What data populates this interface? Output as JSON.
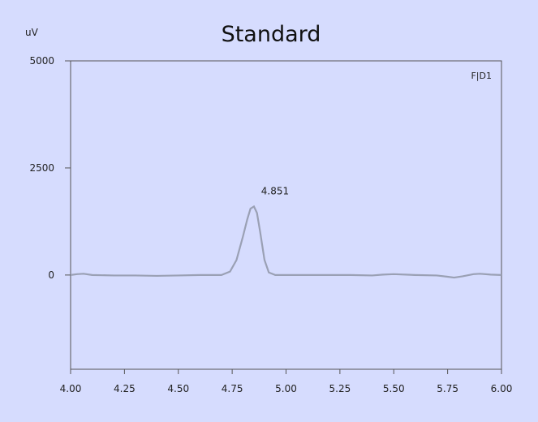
{
  "chart_data": {
    "type": "line",
    "title": "Standard",
    "y_unit": "uV",
    "trace_label": "F|D1",
    "xlim": [
      4.0,
      6.0
    ],
    "ylim": [
      -2200,
      5000
    ],
    "x_ticks": [
      "4.00",
      "4.25",
      "4.50",
      "4.75",
      "5.00",
      "5.25",
      "5.50",
      "5.75",
      "6.00"
    ],
    "x_tick_values": [
      4.0,
      4.25,
      4.5,
      4.75,
      5.0,
      5.25,
      5.5,
      5.75,
      6.0
    ],
    "y_ticks": [
      "5000",
      "2500",
      "0"
    ],
    "y_tick_values": [
      5000,
      2500,
      0
    ],
    "peak_label": {
      "text": "4.851",
      "x": 4.851,
      "y": 1600
    },
    "series": [
      {
        "x": [
          4.0,
          4.03,
          4.06,
          4.1,
          4.2,
          4.3,
          4.4,
          4.5,
          4.6,
          4.7,
          4.74,
          4.77,
          4.8,
          4.82,
          4.835,
          4.851,
          4.865,
          4.88,
          4.9,
          4.92,
          4.95,
          5.0,
          5.1,
          5.2,
          5.3,
          5.4,
          5.45,
          5.5,
          5.6,
          5.7,
          5.75,
          5.78,
          5.82,
          5.87,
          5.9,
          5.95,
          6.0
        ],
        "y": [
          0,
          20,
          30,
          0,
          -10,
          -10,
          -20,
          -10,
          0,
          0,
          80,
          350,
          900,
          1300,
          1550,
          1600,
          1450,
          1000,
          350,
          60,
          0,
          0,
          0,
          0,
          0,
          -10,
          10,
          20,
          0,
          -10,
          -40,
          -60,
          -30,
          20,
          30,
          10,
          0
        ]
      }
    ],
    "colors": {
      "background": "#d6dcfe",
      "axis": "#555555",
      "trace": "#9aa0b4"
    }
  }
}
